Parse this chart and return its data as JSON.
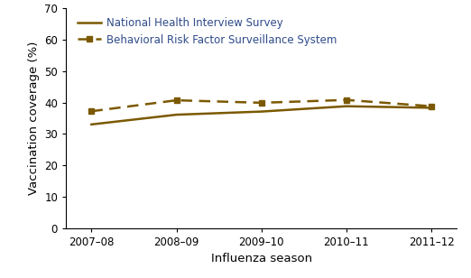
{
  "seasons": [
    "2007–08",
    "2008–09",
    "2009–10",
    "2010–11",
    "2011–12"
  ],
  "nhis_values": [
    33.0,
    36.1,
    37.1,
    38.8,
    38.3
  ],
  "brfss_values": [
    37.2,
    40.7,
    39.9,
    40.8,
    38.8
  ],
  "nhis_label": "National Health Interview Survey",
  "brfss_label": "Behavioral Risk Factor Surveillance System",
  "line_color": "#7B5900",
  "legend_text_color": "#2E4A8A",
  "xlabel": "Influenza season",
  "ylabel": "Vaccination coverage (%)",
  "ylim": [
    0,
    70
  ],
  "yticks": [
    0,
    10,
    20,
    30,
    40,
    50,
    60,
    70
  ],
  "background_color": "#ffffff",
  "marker_size": 5,
  "linewidth": 1.8,
  "legend_fontsize": 8.5,
  "axis_label_fontsize": 9.5,
  "tick_fontsize": 8.5
}
